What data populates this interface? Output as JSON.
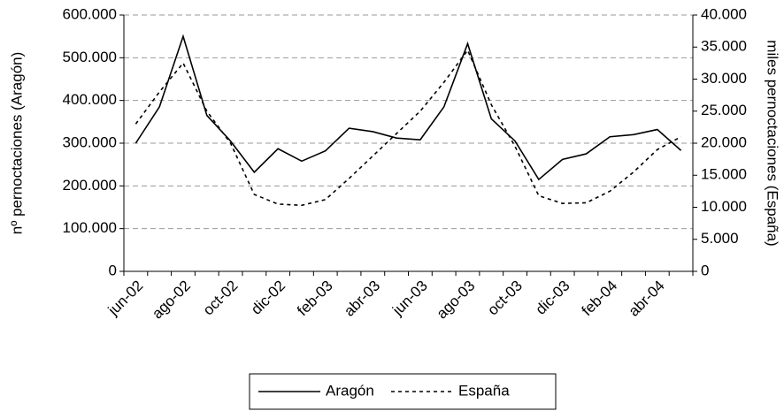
{
  "chart_data": {
    "type": "line",
    "ylabel": "nº pernoctaciones (Aragón)",
    "y2label": "miles pernoctaciones (España)",
    "categories": [
      "jun-02",
      null,
      "ago-02",
      null,
      "oct-02",
      null,
      "dic-02",
      null,
      "feb-03",
      null,
      "abr-03",
      null,
      "jun-03",
      null,
      "ago-03",
      null,
      "oct-03",
      null,
      "dic-03",
      null,
      "feb-04",
      null,
      "abr-04",
      null
    ],
    "series": [
      {
        "name": "Aragón",
        "color": "#000000",
        "dash": "solid",
        "axis": "y",
        "values": [
          300000,
          385000,
          550000,
          365000,
          305000,
          232000,
          287000,
          258000,
          282000,
          335000,
          327000,
          312000,
          308000,
          385000,
          533000,
          357000,
          305000,
          215000,
          262000,
          275000,
          315000,
          320000,
          332000,
          283000
        ]
      },
      {
        "name": "España",
        "color": "#000000",
        "dash": "dashed",
        "axis": "y2",
        "values": [
          23000,
          28000,
          32500,
          25000,
          20000,
          12000,
          10500,
          10300,
          11200,
          14500,
          18000,
          21500,
          25000,
          29500,
          34500,
          26000,
          19500,
          11800,
          10600,
          10700,
          12500,
          15500,
          19000,
          21000
        ]
      }
    ],
    "ylim": [
      0,
      600000
    ],
    "yticks": [
      0,
      {
        "value": 100000,
        "label": "100.000"
      },
      {
        "value": 200000,
        "label": "200.000"
      },
      {
        "value": 300000,
        "label": "300.000"
      },
      {
        "value": 400000,
        "label": "400.000"
      },
      {
        "value": 500000,
        "label": "500.000"
      },
      {
        "value": 600000,
        "label": "600.000"
      }
    ],
    "y2lim": [
      0,
      40000
    ],
    "y2ticks": [
      0,
      {
        "value": 5000,
        "label": "5.000"
      },
      {
        "value": 10000,
        "label": "10.000"
      },
      {
        "value": 15000,
        "label": "15.000"
      },
      {
        "value": 20000,
        "label": "20.000"
      },
      {
        "value": 25000,
        "label": "25.000"
      },
      {
        "value": 30000,
        "label": "30.000"
      },
      {
        "value": 35000,
        "label": "35.000"
      },
      {
        "value": 40000,
        "label": "40.000"
      }
    ],
    "grid": true,
    "legend": "bottom"
  }
}
